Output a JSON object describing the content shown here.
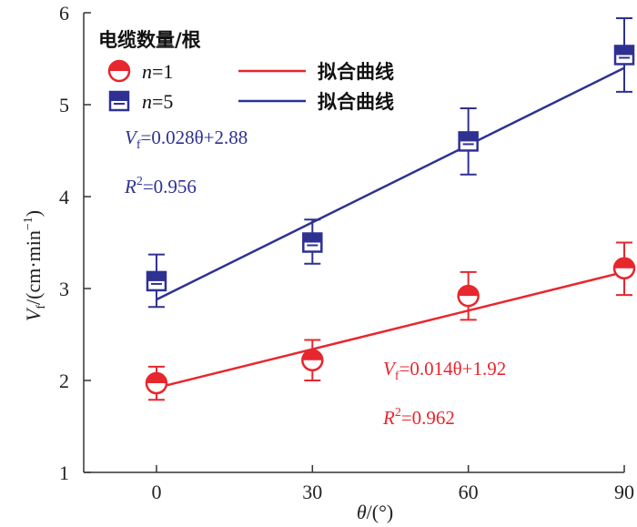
{
  "chart_data": {
    "type": "scatter",
    "xlabel": "θ/(°)",
    "ylabel": "Vf/(cm·min−1)",
    "x_ticks": [
      "0",
      "30",
      "60",
      "90"
    ],
    "y_ticks": [
      "1",
      "2",
      "3",
      "4",
      "5",
      "6"
    ],
    "xlim": [
      -14,
      90
    ],
    "ylim": [
      1,
      6
    ],
    "legend": {
      "title": "电缆数量/根",
      "placement": "top-left",
      "entries": [
        {
          "series": "n1",
          "label": "n=1",
          "fit_label": "拟合曲线"
        },
        {
          "series": "n5",
          "label": "n=5",
          "fit_label": "拟合曲线"
        }
      ]
    },
    "series": [
      {
        "id": "n1",
        "name": "n=1",
        "color": "#e8262d",
        "marker": "circle",
        "x": [
          0,
          30,
          60,
          90
        ],
        "y": [
          1.97,
          2.22,
          2.92,
          3.22
        ],
        "err_upper": [
          2.15,
          2.44,
          3.18,
          3.5
        ],
        "err_lower": [
          1.79,
          2.0,
          2.66,
          2.93
        ],
        "fit": {
          "slope": 0.014,
          "intercept": 1.92,
          "r2": "0.962"
        },
        "annotation": {
          "eq_prefix": "V",
          "eq_sub": "f",
          "eq_body": "=0.014θ+1.92",
          "r2_prefix": "R",
          "r2_sup": "2",
          "r2_body": "=0.962"
        }
      },
      {
        "id": "n5",
        "name": "n=5",
        "color": "#2e3192",
        "marker": "square",
        "x": [
          0,
          30,
          60,
          90
        ],
        "y": [
          3.08,
          3.5,
          4.6,
          5.54
        ],
        "err_upper": [
          3.37,
          3.75,
          4.96,
          5.94
        ],
        "err_lower": [
          2.8,
          3.27,
          4.24,
          5.14
        ],
        "fit": {
          "slope": 0.028,
          "intercept": 2.88,
          "r2": "0.956"
        },
        "annotation": {
          "eq_prefix": "V",
          "eq_sub": "f",
          "eq_body": "=0.028θ+2.88",
          "r2_prefix": "R",
          "r2_sup": "2",
          "r2_body": "=0.956"
        }
      }
    ]
  }
}
